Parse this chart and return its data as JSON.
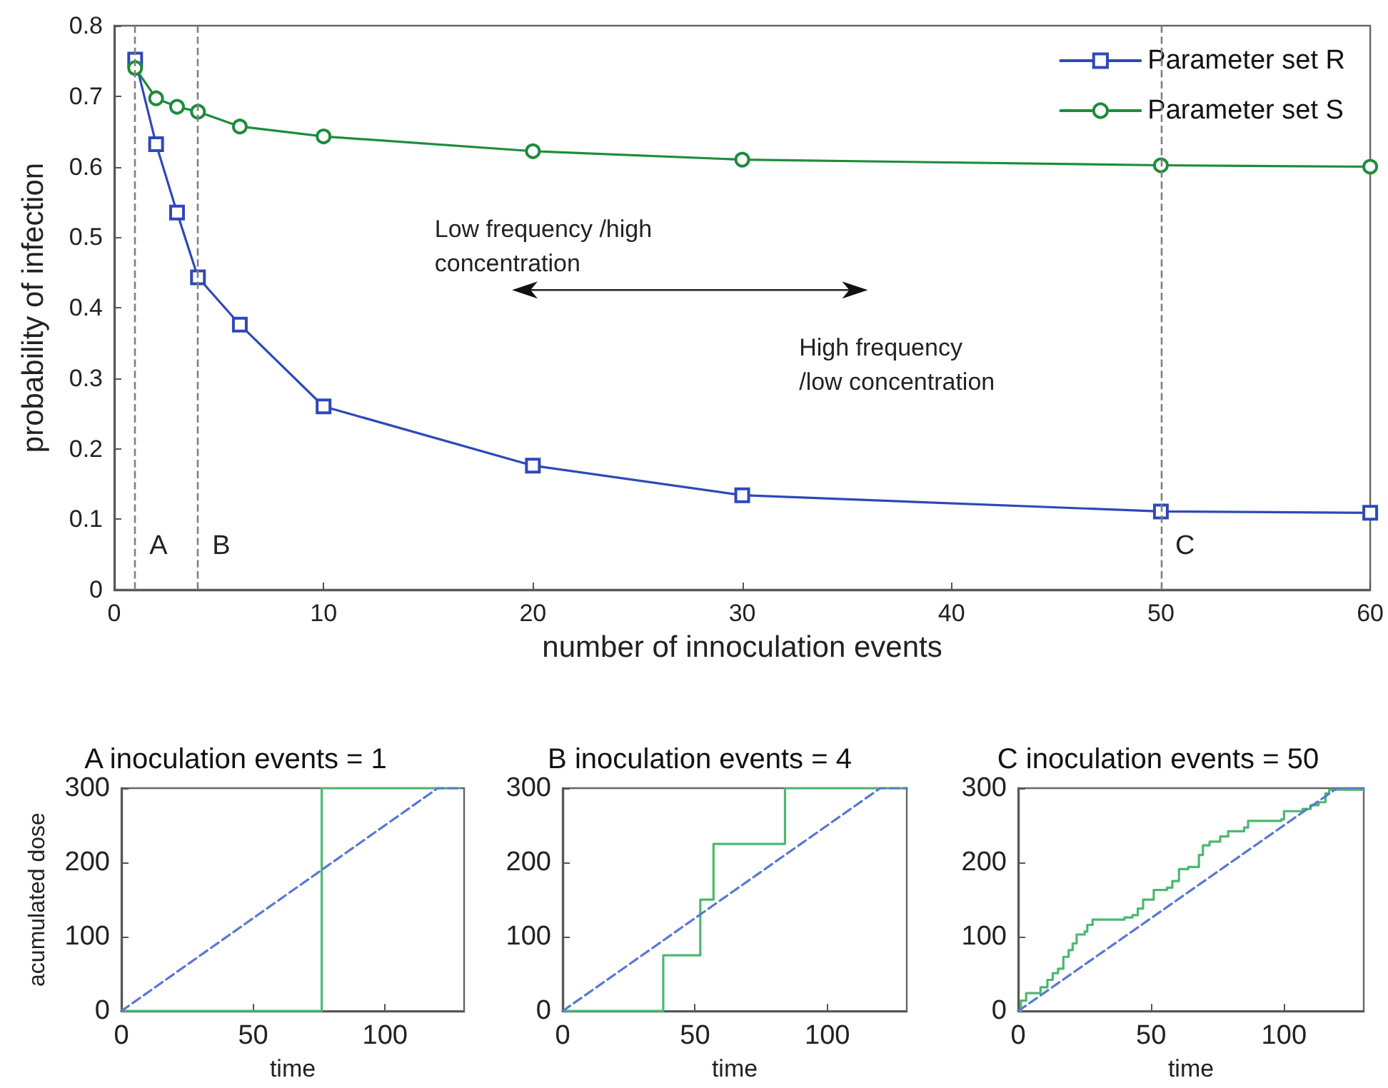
{
  "chart_data": [
    {
      "type": "line",
      "xlabel": "number of innoculation events",
      "ylabel": "probability of infection",
      "xlim": [
        0,
        60
      ],
      "xticks": [
        0,
        10,
        20,
        30,
        40,
        50,
        60
      ],
      "ylim": [
        0,
        0.8
      ],
      "yticks": [
        0,
        0.1,
        0.2,
        0.3,
        0.4,
        0.5,
        0.6,
        0.7,
        0.8
      ],
      "legend": "top right",
      "x": [
        1,
        2,
        3,
        4,
        6,
        10,
        20,
        30,
        50,
        60
      ],
      "series": [
        {
          "name": "Parameter set R",
          "color": "#2f48b8",
          "marker": "square",
          "values": [
            0.752,
            0.632,
            0.535,
            0.443,
            0.376,
            0.26,
            0.176,
            0.134,
            0.111,
            0.109
          ]
        },
        {
          "name": "Parameter set S",
          "color": "#1d8c3c",
          "marker": "circle",
          "values": [
            0.74,
            0.697,
            0.685,
            0.678,
            0.657,
            0.643,
            0.622,
            0.61,
            0.602,
            0.6
          ]
        }
      ],
      "ref_lines": [
        {
          "axis": "x",
          "value": 1,
          "label": "A",
          "color": "#808080",
          "line_style": "dashed"
        },
        {
          "axis": "x",
          "value": 4,
          "label": "B",
          "color": "#808080",
          "line_style": "dashed"
        },
        {
          "axis": "x",
          "value": 50,
          "label": "C",
          "color": "#808080",
          "line_style": "dashed"
        }
      ],
      "annotations": [
        "Low frequency /high\nconcentration",
        "High frequency\n/low concentration"
      ]
    },
    {
      "type": "step",
      "title": "A inoculation events = 1",
      "xlabel": "time",
      "ylabel": "acumulated dose",
      "xlim": [
        0,
        130
      ],
      "xticks": [
        0,
        50,
        100
      ],
      "ylim": [
        0,
        300
      ],
      "yticks": [
        0,
        100,
        200,
        300
      ],
      "series": [
        {
          "color": "#4cb870",
          "x": [
            0,
            76,
            128
          ],
          "values": [
            0,
            300,
            300
          ]
        },
        {
          "type": "line",
          "line_style": "dashed",
          "color": "#5a78d0",
          "x": [
            0,
            120,
            128
          ],
          "values": [
            0,
            300,
            300
          ]
        }
      ]
    },
    {
      "type": "step",
      "title": "B inoculation events = 4",
      "xlabel": "time",
      "xlim": [
        0,
        130
      ],
      "xticks": [
        0,
        50,
        100
      ],
      "ylim": [
        0,
        300
      ],
      "yticks": [
        0,
        100,
        200,
        300
      ],
      "series": [
        {
          "color": "#4cb870",
          "x": [
            0,
            38,
            52,
            57,
            84,
            130
          ],
          "values": [
            0,
            75,
            150,
            225,
            300,
            300
          ]
        },
        {
          "type": "line",
          "line_style": "dashed",
          "color": "#5a78d0",
          "x": [
            0,
            120,
            130
          ],
          "values": [
            0,
            300,
            300
          ]
        }
      ]
    },
    {
      "type": "step",
      "title": "C inoculation events = 50",
      "xlabel": "time",
      "xlim": [
        0,
        130
      ],
      "xticks": [
        0,
        50,
        100
      ],
      "ylim": [
        0,
        300
      ],
      "yticks": [
        0,
        100,
        200,
        300
      ],
      "series": [
        {
          "color": "#4cb870",
          "x": [
            0,
            1,
            3,
            7.5,
            8.4,
            11,
            13,
            15,
            17,
            19,
            20.5,
            22,
            25,
            26,
            28,
            38,
            40,
            43,
            45,
            47,
            51,
            56,
            58,
            60.5,
            64,
            68,
            69.5,
            72,
            76,
            79,
            85,
            86.5,
            99,
            100,
            107,
            110,
            113,
            115.6,
            117,
            130
          ],
          "values": [
            0,
            14,
            24,
            24,
            32,
            42,
            51,
            57,
            73,
            82,
            91,
            103,
            107,
            116,
            123,
            123,
            126,
            129,
            138,
            150,
            163,
            166,
            175,
            191,
            194,
            210,
            223,
            228,
            235,
            242,
            247,
            256,
            258,
            269,
            272,
            277,
            281,
            293,
            298,
            298
          ]
        },
        {
          "type": "line",
          "line_style": "dashed",
          "color": "#5a78d0",
          "x": [
            0,
            120,
            130
          ],
          "values": [
            0,
            300,
            300
          ]
        }
      ]
    }
  ]
}
